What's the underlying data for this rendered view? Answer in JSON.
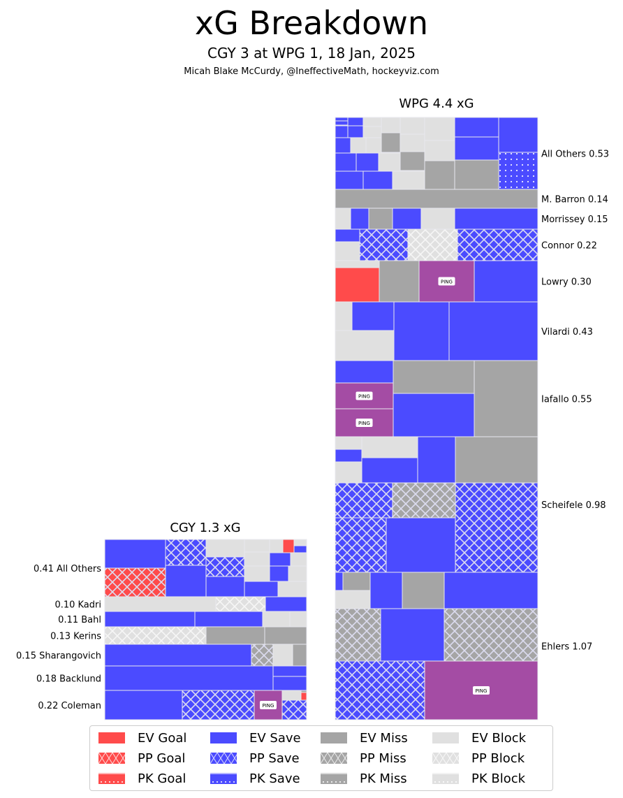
{
  "header": {
    "title": "xG Breakdown",
    "subtitle": "CGY 3 at WPG 1, 18 Jan, 2025",
    "credit": "Micah Blake McCurdy, @IneffectiveMath, hockeyviz.com"
  },
  "colors": {
    "goal": "#ff4b4b",
    "save": "#4b4bff",
    "miss": "#a5a5a5",
    "block": "#e0e0e0",
    "ping": "#a44ca4",
    "border": "#e8e8ee"
  },
  "chart_data": {
    "type": "treemap",
    "title": "xG Breakdown",
    "panels": [
      {
        "team": "WPG",
        "panel_title": "WPG 4.4 xG",
        "total_xg": 4.4,
        "label_side": "right",
        "players": [
          {
            "name": "All Others",
            "xg": 0.53,
            "label": "All Others 0.53"
          },
          {
            "name": "M. Barron",
            "xg": 0.14,
            "label": "M. Barron 0.14"
          },
          {
            "name": "Morrissey",
            "xg": 0.15,
            "label": "Morrissey 0.15"
          },
          {
            "name": "Connor",
            "xg": 0.22,
            "label": "Connor 0.22"
          },
          {
            "name": "Lowry",
            "xg": 0.3,
            "label": "Lowry 0.30"
          },
          {
            "name": "Vilardi",
            "xg": 0.43,
            "label": "Vilardi 0.43"
          },
          {
            "name": "Iafallo",
            "xg": 0.55,
            "label": "Iafallo 0.55"
          },
          {
            "name": "Scheifele",
            "xg": 0.98,
            "label": "Scheifele 0.98"
          },
          {
            "name": "Ehlers",
            "xg": 1.07,
            "label": "Ehlers 1.07"
          }
        ]
      },
      {
        "team": "CGY",
        "panel_title": "CGY 1.3 xG",
        "total_xg": 1.3,
        "label_side": "left",
        "players": [
          {
            "name": "All Others",
            "xg": 0.41,
            "label": "0.41 All Others"
          },
          {
            "name": "Kadri",
            "xg": 0.1,
            "label": "0.10 Kadri"
          },
          {
            "name": "Bahl",
            "xg": 0.11,
            "label": "0.11 Bahl"
          },
          {
            "name": "Kerins",
            "xg": 0.13,
            "label": "0.13 Kerins"
          },
          {
            "name": "Sharangovich",
            "xg": 0.15,
            "label": "0.15 Sharangovich"
          },
          {
            "name": "Backlund",
            "xg": 0.18,
            "label": "0.18 Backlund"
          },
          {
            "name": "Coleman",
            "xg": 0.22,
            "label": "0.22 Coleman"
          }
        ]
      }
    ],
    "annotation": "PING",
    "legend": {
      "placement": "bottom",
      "items": [
        {
          "label": "EV Goal",
          "outcome": "goal",
          "strength": "EV"
        },
        {
          "label": "EV Save",
          "outcome": "save",
          "strength": "EV"
        },
        {
          "label": "EV Miss",
          "outcome": "miss",
          "strength": "EV"
        },
        {
          "label": "EV Block",
          "outcome": "block",
          "strength": "EV"
        },
        {
          "label": "PP Goal",
          "outcome": "goal",
          "strength": "PP"
        },
        {
          "label": "PP Save",
          "outcome": "save",
          "strength": "PP"
        },
        {
          "label": "PP Miss",
          "outcome": "miss",
          "strength": "PP"
        },
        {
          "label": "PP Block",
          "outcome": "block",
          "strength": "PP"
        },
        {
          "label": "PK Goal",
          "outcome": "goal",
          "strength": "PK"
        },
        {
          "label": "PK Save",
          "outcome": "save",
          "strength": "PK"
        },
        {
          "label": "PK Miss",
          "outcome": "miss",
          "strength": "PK"
        },
        {
          "label": "PK Block",
          "outcome": "block",
          "strength": "PK"
        }
      ]
    }
  }
}
